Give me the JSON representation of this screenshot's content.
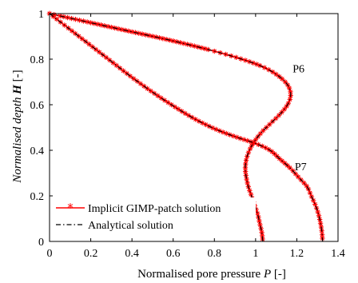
{
  "chart_data": {
    "type": "line",
    "title": "",
    "xlabel": {
      "prefix": "Normalised pore pressure ",
      "var": "P",
      "suffix": " [-]"
    },
    "ylabel": {
      "prefix": "Normalised depth ",
      "var": "H",
      "suffix": " [-]"
    },
    "xlim": [
      0,
      1.4
    ],
    "ylim": [
      0,
      1
    ],
    "xticks": [
      0,
      0.2,
      0.4,
      0.6,
      0.8,
      1,
      1.2,
      1.4
    ],
    "yticks": [
      0,
      0.2,
      0.4,
      0.6,
      0.8,
      1
    ],
    "xtick_labels": [
      "0",
      "0.2",
      "0.4",
      "0.6",
      "0.8",
      "1",
      "1.2",
      "1.4"
    ],
    "ytick_labels": [
      "0",
      "0.2",
      "0.4",
      "0.6",
      "0.8",
      "1"
    ],
    "grid": false,
    "legend_position": "bottom-left",
    "legend": [
      {
        "label": "Implicit GIMP-patch solution",
        "color": "#ff0000",
        "style": "solid-star"
      },
      {
        "label": "Analytical solution",
        "color": "#000000",
        "style": "dashdot"
      }
    ],
    "curves": [
      {
        "annotation": "P6",
        "annotation_at": [
          1.18,
          0.76
        ],
        "points": [
          [
            0.0,
            1.0
          ],
          [
            0.2,
            0.96
          ],
          [
            0.4,
            0.92
          ],
          [
            0.6,
            0.88
          ],
          [
            0.8,
            0.835
          ],
          [
            0.95,
            0.795
          ],
          [
            1.05,
            0.76
          ],
          [
            1.12,
            0.72
          ],
          [
            1.16,
            0.68
          ],
          [
            1.17,
            0.64
          ],
          [
            1.155,
            0.6
          ],
          [
            1.12,
            0.56
          ],
          [
            1.075,
            0.52
          ],
          [
            1.03,
            0.48
          ],
          [
            0.995,
            0.44
          ],
          [
            0.97,
            0.4
          ],
          [
            0.955,
            0.36
          ],
          [
            0.95,
            0.32
          ],
          [
            0.955,
            0.28
          ],
          [
            0.965,
            0.24
          ],
          [
            0.98,
            0.2
          ],
          [
            0.995,
            0.16
          ],
          [
            1.01,
            0.12
          ],
          [
            1.02,
            0.08
          ],
          [
            1.03,
            0.04
          ],
          [
            1.035,
            0.0
          ]
        ]
      },
      {
        "annotation": "P7",
        "annotation_at": [
          1.19,
          0.33
        ],
        "points": [
          [
            0.0,
            1.0
          ],
          [
            0.1,
            0.93
          ],
          [
            0.2,
            0.86
          ],
          [
            0.3,
            0.79
          ],
          [
            0.4,
            0.72
          ],
          [
            0.5,
            0.655
          ],
          [
            0.6,
            0.595
          ],
          [
            0.7,
            0.54
          ],
          [
            0.8,
            0.495
          ],
          [
            0.9,
            0.46
          ],
          [
            1.0,
            0.43
          ],
          [
            1.07,
            0.4
          ],
          [
            1.12,
            0.36
          ],
          [
            1.17,
            0.32
          ],
          [
            1.21,
            0.28
          ],
          [
            1.25,
            0.24
          ],
          [
            1.27,
            0.2
          ],
          [
            1.29,
            0.16
          ],
          [
            1.305,
            0.12
          ],
          [
            1.315,
            0.08
          ],
          [
            1.322,
            0.04
          ],
          [
            1.325,
            0.0
          ]
        ]
      }
    ]
  }
}
